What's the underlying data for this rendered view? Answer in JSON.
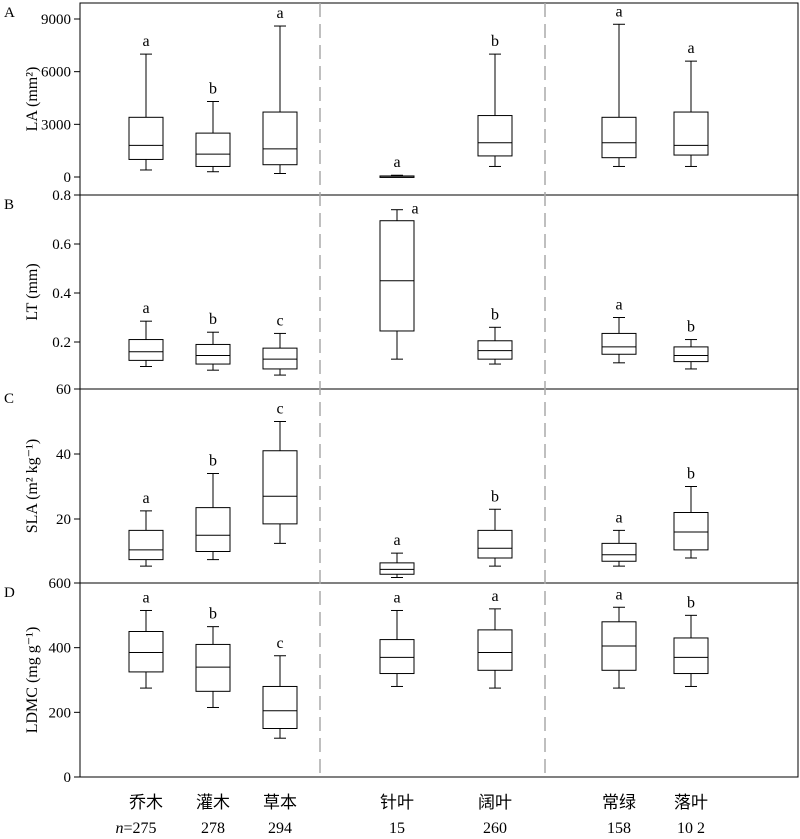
{
  "figure": {
    "groups": [
      "乔木",
      "灌木",
      "草本",
      "针叶",
      "阔叶",
      "常绿",
      "落叶"
    ],
    "sample_sizes": [
      "n=275",
      "278",
      "294",
      "15",
      "260",
      "158",
      "10 2"
    ],
    "box_color": "#000000",
    "separator_color": "#aaaaaa"
  },
  "chart_data": [
    {
      "panel": "A",
      "type": "box",
      "ylabel": "LA (mm²)",
      "ylim": [
        0,
        9000
      ],
      "yticks": [
        0,
        3000,
        6000,
        9000
      ],
      "categories": [
        "乔木",
        "灌木",
        "草本",
        "针叶",
        "阔叶",
        "常绿",
        "落叶"
      ],
      "boxes": [
        {
          "min": 400,
          "q1": 1000,
          "median": 1800,
          "q3": 3400,
          "max": 7000
        },
        {
          "min": 300,
          "q1": 600,
          "median": 1300,
          "q3": 2500,
          "max": 4300
        },
        {
          "min": 200,
          "q1": 700,
          "median": 1600,
          "q3": 3700,
          "max": 8600
        },
        {
          "min": 10,
          "q1": 20,
          "median": 40,
          "q3": 60,
          "max": 100
        },
        {
          "min": 600,
          "q1": 1200,
          "median": 1950,
          "q3": 3500,
          "max": 7000
        },
        {
          "min": 600,
          "q1": 1100,
          "median": 1950,
          "q3": 3400,
          "max": 8700
        },
        {
          "min": 600,
          "q1": 1250,
          "median": 1800,
          "q3": 3700,
          "max": 6600
        }
      ],
      "letters": [
        "a",
        "b",
        "a",
        "a",
        "b",
        "a",
        "a"
      ]
    },
    {
      "panel": "B",
      "type": "box",
      "ylabel": "LT (mm)",
      "ylim": [
        0.015,
        0.8
      ],
      "yticks": [
        0.2,
        0.4,
        0.6,
        0.8
      ],
      "categories": [
        "乔木",
        "灌木",
        "草本",
        "针叶",
        "阔叶",
        "常绿",
        "落叶"
      ],
      "boxes": [
        {
          "min": 0.1,
          "q1": 0.125,
          "median": 0.16,
          "q3": 0.21,
          "max": 0.285
        },
        {
          "min": 0.085,
          "q1": 0.11,
          "median": 0.145,
          "q3": 0.19,
          "max": 0.24
        },
        {
          "min": 0.065,
          "q1": 0.09,
          "median": 0.13,
          "q3": 0.175,
          "max": 0.235
        },
        {
          "min": 0.13,
          "q1": 0.245,
          "median": 0.45,
          "q3": 0.695,
          "max": 0.74
        },
        {
          "min": 0.11,
          "q1": 0.13,
          "median": 0.165,
          "q3": 0.205,
          "max": 0.26
        },
        {
          "min": 0.115,
          "q1": 0.15,
          "median": 0.18,
          "q3": 0.235,
          "max": 0.3
        },
        {
          "min": 0.09,
          "q1": 0.12,
          "median": 0.145,
          "q3": 0.18,
          "max": 0.21
        }
      ],
      "letters": [
        "a",
        "b",
        "c",
        "a",
        "b",
        "a",
        "b"
      ]
    },
    {
      "panel": "C",
      "type": "box",
      "ylabel": "SLA (m² kg⁻¹)",
      "ylim": [
        0,
        60
      ],
      "yticks": [
        20,
        40,
        60
      ],
      "categories": [
        "乔木",
        "灌木",
        "草本",
        "针叶",
        "阔叶",
        "常绿",
        "落叶"
      ],
      "boxes": [
        {
          "min": 5.5,
          "q1": 7.5,
          "median": 10.5,
          "q3": 16.5,
          "max": 22.5
        },
        {
          "min": 7.5,
          "q1": 10,
          "median": 15,
          "q3": 23.5,
          "max": 34
        },
        {
          "min": 12.5,
          "q1": 18.5,
          "median": 27,
          "q3": 41,
          "max": 50
        },
        {
          "min": 2,
          "q1": 3,
          "median": 4.5,
          "q3": 6.5,
          "max": 9.5
        },
        {
          "min": 5.5,
          "q1": 8,
          "median": 11,
          "q3": 16.5,
          "max": 23
        },
        {
          "min": 5.5,
          "q1": 7,
          "median": 9,
          "q3": 12.5,
          "max": 16.5
        },
        {
          "min": 8,
          "q1": 10.5,
          "median": 16,
          "q3": 22,
          "max": 30
        }
      ],
      "letters": [
        "a",
        "b",
        "c",
        "a",
        "b",
        "a",
        "b"
      ]
    },
    {
      "panel": "D",
      "type": "box",
      "ylabel": "LDMC (mg g⁻¹)",
      "ylim": [
        0,
        600
      ],
      "yticks": [
        0,
        200,
        400,
        600
      ],
      "categories": [
        "乔木",
        "灌木",
        "草本",
        "针叶",
        "阔叶",
        "常绿",
        "落叶"
      ],
      "boxes": [
        {
          "min": 275,
          "q1": 325,
          "median": 385,
          "q3": 450,
          "max": 515
        },
        {
          "min": 215,
          "q1": 265,
          "median": 340,
          "q3": 410,
          "max": 465
        },
        {
          "min": 120,
          "q1": 150,
          "median": 205,
          "q3": 280,
          "max": 375
        },
        {
          "min": 280,
          "q1": 320,
          "median": 370,
          "q3": 425,
          "max": 515
        },
        {
          "min": 275,
          "q1": 330,
          "median": 385,
          "q3": 455,
          "max": 520
        },
        {
          "min": 275,
          "q1": 330,
          "median": 405,
          "q3": 480,
          "max": 525
        },
        {
          "min": 280,
          "q1": 320,
          "median": 370,
          "q3": 430,
          "max": 500
        }
      ],
      "letters": [
        "a",
        "b",
        "c",
        "a",
        "a",
        "a",
        "b"
      ]
    }
  ]
}
